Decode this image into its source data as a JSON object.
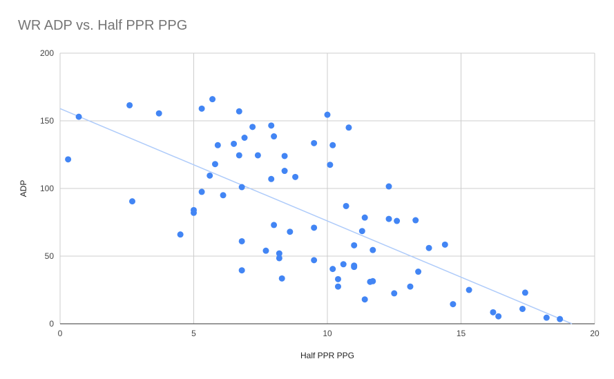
{
  "chart_data": {
    "type": "scatter",
    "title": "WR ADP vs. Half PPR PPG",
    "xlabel": "Half PPR PPG",
    "ylabel": "ADP",
    "xlim": [
      0,
      20
    ],
    "ylim": [
      0,
      200
    ],
    "xticks": [
      "0",
      "5",
      "10",
      "15",
      "20"
    ],
    "yticks": [
      "0",
      "50",
      "100",
      "150",
      "200"
    ],
    "grid": true,
    "point_color": "#4285f4",
    "trendline": {
      "type": "linear",
      "color": "#aecbfa",
      "x": [
        0,
        19.15
      ],
      "y": [
        159,
        0
      ]
    },
    "points": [
      [
        0.3,
        121.5
      ],
      [
        0.7,
        153
      ],
      [
        2.6,
        161.5
      ],
      [
        2.7,
        90.5
      ],
      [
        3.7,
        155.5
      ],
      [
        4.5,
        66
      ],
      [
        5.0,
        84
      ],
      [
        5.0,
        82
      ],
      [
        5.3,
        159
      ],
      [
        5.3,
        97.5
      ],
      [
        5.6,
        109.5
      ],
      [
        5.7,
        166
      ],
      [
        5.8,
        118
      ],
      [
        5.9,
        132
      ],
      [
        6.1,
        95
      ],
      [
        6.5,
        133
      ],
      [
        6.7,
        157
      ],
      [
        6.7,
        124.5
      ],
      [
        6.8,
        101
      ],
      [
        6.8,
        61
      ],
      [
        6.8,
        39.5
      ],
      [
        6.9,
        137.5
      ],
      [
        7.2,
        145.5
      ],
      [
        7.4,
        124.5
      ],
      [
        7.7,
        54
      ],
      [
        7.9,
        146.5
      ],
      [
        7.9,
        107
      ],
      [
        8.0,
        138.5
      ],
      [
        8.0,
        73
      ],
      [
        8.2,
        52
      ],
      [
        8.2,
        48.5
      ],
      [
        8.3,
        33.5
      ],
      [
        8.4,
        124
      ],
      [
        8.4,
        113
      ],
      [
        8.6,
        68
      ],
      [
        8.8,
        108.5
      ],
      [
        9.5,
        133.5
      ],
      [
        9.5,
        71
      ],
      [
        9.5,
        47
      ],
      [
        10.0,
        154.5
      ],
      [
        10.1,
        117.5
      ],
      [
        10.2,
        132
      ],
      [
        10.2,
        40.5
      ],
      [
        10.4,
        33
      ],
      [
        10.4,
        27.5
      ],
      [
        10.6,
        44
      ],
      [
        10.7,
        87
      ],
      [
        10.8,
        145
      ],
      [
        11.0,
        58
      ],
      [
        11.0,
        43
      ],
      [
        11.0,
        42
      ],
      [
        11.3,
        68.5
      ],
      [
        11.4,
        78.5
      ],
      [
        11.4,
        18
      ],
      [
        11.6,
        31
      ],
      [
        11.7,
        31.5
      ],
      [
        11.7,
        54.5
      ],
      [
        12.3,
        101.5
      ],
      [
        12.3,
        77.5
      ],
      [
        12.5,
        22.5
      ],
      [
        12.6,
        76
      ],
      [
        13.1,
        27.5
      ],
      [
        13.3,
        76.5
      ],
      [
        13.4,
        38.5
      ],
      [
        13.8,
        56
      ],
      [
        14.4,
        58.5
      ],
      [
        14.7,
        14.5
      ],
      [
        15.3,
        25
      ],
      [
        16.2,
        8.5
      ],
      [
        16.4,
        5.5
      ],
      [
        17.3,
        11
      ],
      [
        17.4,
        23
      ],
      [
        18.2,
        4.5
      ],
      [
        18.7,
        3.5
      ]
    ]
  }
}
